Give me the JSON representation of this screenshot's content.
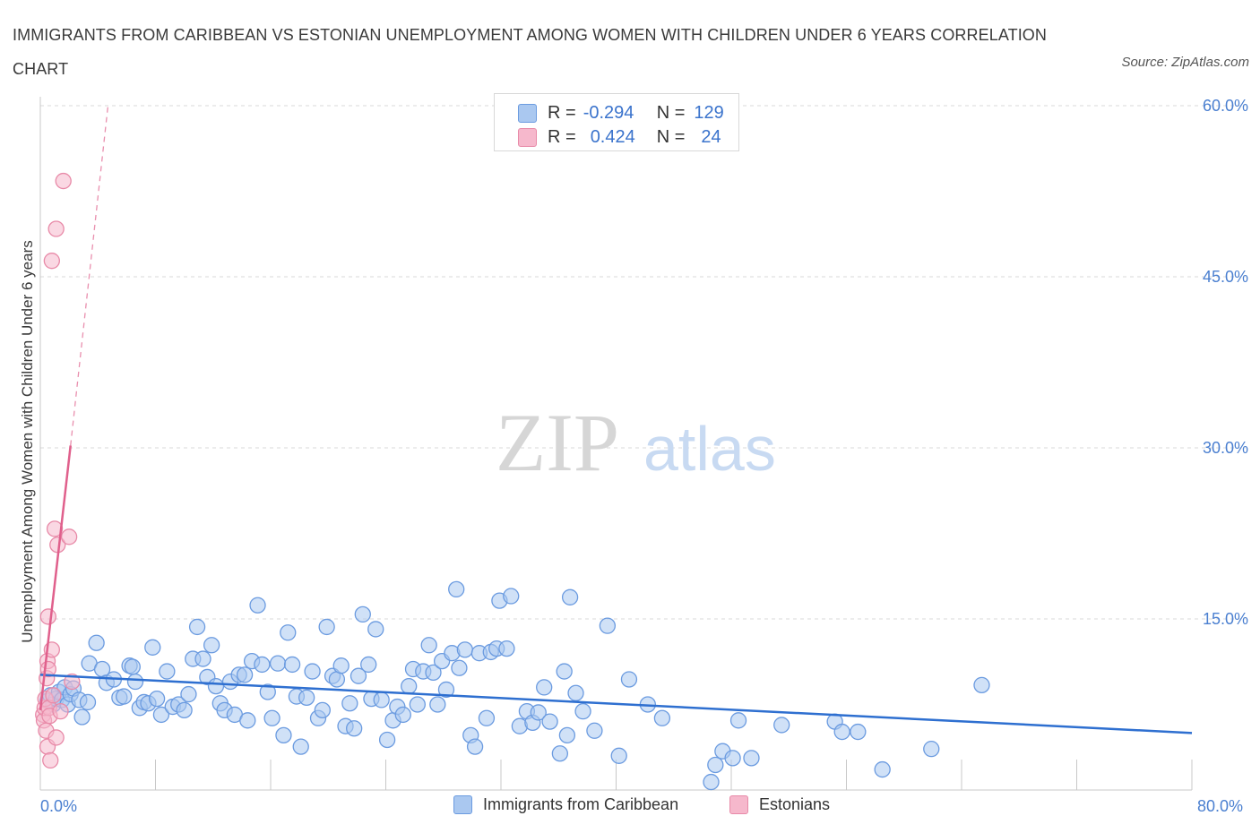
{
  "title": "IMMIGRANTS FROM CARIBBEAN VS ESTONIAN UNEMPLOYMENT AMONG WOMEN WITH CHILDREN UNDER 6 YEARS CORRELATION CHART",
  "source": "Source: ZipAtlas.com",
  "watermark": {
    "zip": "ZIP",
    "atlas": "atlas"
  },
  "colors": {
    "blue_fill": "#aac8f0",
    "blue_stroke": "#6b9be0",
    "blue_line": "#2e6fd0",
    "pink_fill": "#f6b8cc",
    "pink_stroke": "#e88aa8",
    "pink_line": "#e0608c",
    "grid": "#d9d9d9",
    "tick_text": "#4a7fd0"
  },
  "legend": {
    "rows": [
      {
        "r_label": "R =",
        "r_value": "-0.294",
        "n_label": "N =",
        "n_value": "129"
      },
      {
        "r_label": "R =",
        "r_value": "0.424",
        "n_label": "N =",
        "n_value": "24"
      }
    ]
  },
  "chart_data": {
    "type": "scatter",
    "title": "IMMIGRANTS FROM CARIBBEAN VS ESTONIAN UNEMPLOYMENT AMONG WOMEN WITH CHILDREN UNDER 6 YEARS CORRELATION CHART",
    "xlabel": "",
    "ylabel": "Unemployment Among Women with Children Under 6 years",
    "xlim": [
      0,
      80
    ],
    "ylim": [
      0,
      60
    ],
    "x_tick_labels": [
      "0.0%",
      "80.0%"
    ],
    "y_tick_values": [
      15,
      30,
      45,
      60
    ],
    "y_tick_labels": [
      "15.0%",
      "30.0%",
      "45.0%",
      "60.0%"
    ],
    "series": [
      {
        "name": "Immigrants from Caribbean",
        "R": -0.294,
        "N": 129,
        "trend": {
          "x": [
            0,
            80
          ],
          "y": [
            10.1,
            5.0
          ]
        },
        "points": [
          [
            0.5,
            7.8
          ],
          [
            0.7,
            8.3
          ],
          [
            0.9,
            7.5
          ],
          [
            1.1,
            8.0
          ],
          [
            1.3,
            8.6
          ],
          [
            1.5,
            7.9
          ],
          [
            1.7,
            9.0
          ],
          [
            1.9,
            7.5
          ],
          [
            2.1,
            8.4
          ],
          [
            2.3,
            8.9
          ],
          [
            2.7,
            7.9
          ],
          [
            2.9,
            6.4
          ],
          [
            3.3,
            7.7
          ],
          [
            3.9,
            12.9
          ],
          [
            3.4,
            11.1
          ],
          [
            4.3,
            10.6
          ],
          [
            4.6,
            9.4
          ],
          [
            5.1,
            9.7
          ],
          [
            5.5,
            8.1
          ],
          [
            5.8,
            8.2
          ],
          [
            6.2,
            10.9
          ],
          [
            6.4,
            10.8
          ],
          [
            6.6,
            9.5
          ],
          [
            6.9,
            7.2
          ],
          [
            7.2,
            7.7
          ],
          [
            7.5,
            7.6
          ],
          [
            7.8,
            12.5
          ],
          [
            8.1,
            8.0
          ],
          [
            8.4,
            6.6
          ],
          [
            8.8,
            10.4
          ],
          [
            9.2,
            7.3
          ],
          [
            9.6,
            7.5
          ],
          [
            10.0,
            7.0
          ],
          [
            10.3,
            8.4
          ],
          [
            10.6,
            11.5
          ],
          [
            10.9,
            14.3
          ],
          [
            11.3,
            11.5
          ],
          [
            11.6,
            9.9
          ],
          [
            11.9,
            12.7
          ],
          [
            12.2,
            9.1
          ],
          [
            12.5,
            7.6
          ],
          [
            12.8,
            7.0
          ],
          [
            13.2,
            9.5
          ],
          [
            13.5,
            6.6
          ],
          [
            13.8,
            10.1
          ],
          [
            14.2,
            10.1
          ],
          [
            14.4,
            6.1
          ],
          [
            14.7,
            11.3
          ],
          [
            15.1,
            16.2
          ],
          [
            15.4,
            11.0
          ],
          [
            15.8,
            8.6
          ],
          [
            16.1,
            6.3
          ],
          [
            16.5,
            11.1
          ],
          [
            16.9,
            4.8
          ],
          [
            17.2,
            13.8
          ],
          [
            17.5,
            11.0
          ],
          [
            17.8,
            8.2
          ],
          [
            18.1,
            3.8
          ],
          [
            18.5,
            8.1
          ],
          [
            18.9,
            10.4
          ],
          [
            19.3,
            6.3
          ],
          [
            19.6,
            7.0
          ],
          [
            19.9,
            14.3
          ],
          [
            20.3,
            10.0
          ],
          [
            20.6,
            9.7
          ],
          [
            20.9,
            10.9
          ],
          [
            21.2,
            5.6
          ],
          [
            21.5,
            7.6
          ],
          [
            21.8,
            5.4
          ],
          [
            22.1,
            10.0
          ],
          [
            22.4,
            15.4
          ],
          [
            22.8,
            11.0
          ],
          [
            23.0,
            8.0
          ],
          [
            23.3,
            14.1
          ],
          [
            23.7,
            7.9
          ],
          [
            24.1,
            4.4
          ],
          [
            24.5,
            6.1
          ],
          [
            24.8,
            7.3
          ],
          [
            25.2,
            6.6
          ],
          [
            25.6,
            9.1
          ],
          [
            25.9,
            10.6
          ],
          [
            26.2,
            7.5
          ],
          [
            26.6,
            10.4
          ],
          [
            27.0,
            12.7
          ],
          [
            27.3,
            10.3
          ],
          [
            27.6,
            7.5
          ],
          [
            27.9,
            11.3
          ],
          [
            28.2,
            8.8
          ],
          [
            28.6,
            12.0
          ],
          [
            28.9,
            17.6
          ],
          [
            29.1,
            10.7
          ],
          [
            29.5,
            12.3
          ],
          [
            29.9,
            4.8
          ],
          [
            30.2,
            3.8
          ],
          [
            30.5,
            12.0
          ],
          [
            31.0,
            6.3
          ],
          [
            31.3,
            12.1
          ],
          [
            31.7,
            12.4
          ],
          [
            31.9,
            16.6
          ],
          [
            32.4,
            12.4
          ],
          [
            32.7,
            17.0
          ],
          [
            33.3,
            5.6
          ],
          [
            33.8,
            6.9
          ],
          [
            34.2,
            5.9
          ],
          [
            34.6,
            6.8
          ],
          [
            35.0,
            9.0
          ],
          [
            35.4,
            6.0
          ],
          [
            36.1,
            3.2
          ],
          [
            36.4,
            10.4
          ],
          [
            36.6,
            4.8
          ],
          [
            36.8,
            16.9
          ],
          [
            37.2,
            8.5
          ],
          [
            37.7,
            6.9
          ],
          [
            38.5,
            5.2
          ],
          [
            39.4,
            14.4
          ],
          [
            40.2,
            3.0
          ],
          [
            40.9,
            9.7
          ],
          [
            42.2,
            7.5
          ],
          [
            43.2,
            6.3
          ],
          [
            46.6,
            0.7
          ],
          [
            46.9,
            2.2
          ],
          [
            47.4,
            3.4
          ],
          [
            48.1,
            2.8
          ],
          [
            48.5,
            6.1
          ],
          [
            49.4,
            2.8
          ],
          [
            51.5,
            5.7
          ],
          [
            55.2,
            6.0
          ],
          [
            55.7,
            5.1
          ],
          [
            56.8,
            5.1
          ],
          [
            58.5,
            1.8
          ],
          [
            61.9,
            3.6
          ],
          [
            65.4,
            9.2
          ]
        ]
      },
      {
        "name": "Estonians",
        "R": 0.424,
        "N": 24,
        "trend": {
          "x": [
            0,
            2.1
          ],
          "y": [
            7.0,
            30.2
          ]
        },
        "trend_extension": {
          "x": [
            2.1,
            4.7
          ],
          "y": [
            30.2,
            60.0
          ]
        },
        "points": [
          [
            0.2,
            6.6
          ],
          [
            0.25,
            6.1
          ],
          [
            0.3,
            7.2
          ],
          [
            0.35,
            8.0
          ],
          [
            0.4,
            5.2
          ],
          [
            0.45,
            9.8
          ],
          [
            0.5,
            11.3
          ],
          [
            0.55,
            10.6
          ],
          [
            0.5,
            3.8
          ],
          [
            0.55,
            15.2
          ],
          [
            0.6,
            7.2
          ],
          [
            0.65,
            6.5
          ],
          [
            0.7,
            2.6
          ],
          [
            0.8,
            12.3
          ],
          [
            0.9,
            8.3
          ],
          [
            1.0,
            22.9
          ],
          [
            1.1,
            4.6
          ],
          [
            1.2,
            21.5
          ],
          [
            1.1,
            49.2
          ],
          [
            0.8,
            46.4
          ],
          [
            1.6,
            53.4
          ],
          [
            2.0,
            22.2
          ],
          [
            2.2,
            9.5
          ],
          [
            1.4,
            6.9
          ]
        ]
      }
    ]
  }
}
